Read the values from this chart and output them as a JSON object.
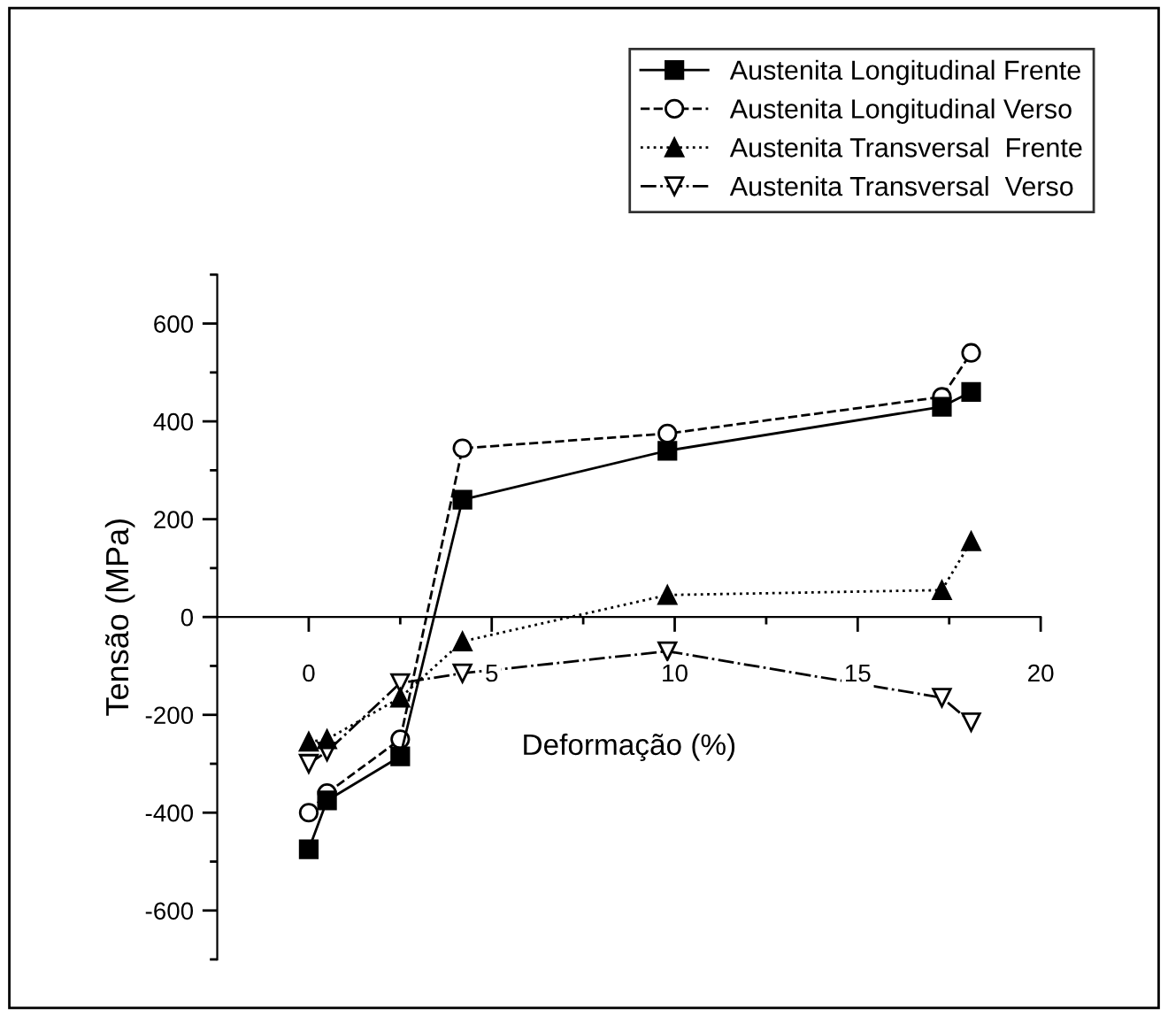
{
  "chart_data": {
    "type": "line",
    "xlabel": "Deformação (%)",
    "ylabel": "Tensão (MPa)",
    "xlim": [
      -2.5,
      20
    ],
    "xticks": [
      0,
      5,
      10,
      15,
      20
    ],
    "ylim": [
      -700,
      700
    ],
    "yticks": [
      -600,
      -400,
      -200,
      0,
      200,
      400,
      600
    ],
    "grid": false,
    "legend": "top right",
    "series": [
      {
        "name": "Austenita Longitudinal Frente",
        "color": "#000000",
        "marker": "square",
        "line_style": "solid",
        "x": [
          0,
          0.5,
          2.5,
          4.2,
          9.8,
          17.3,
          18.1
        ],
        "values": [
          -475,
          -375,
          -285,
          240,
          340,
          430,
          460
        ]
      },
      {
        "name": "Austenita Longitudinal Verso",
        "color": "#000000",
        "marker": "circle",
        "line_style": "dashed",
        "x": [
          0,
          0.5,
          2.5,
          4.2,
          9.8,
          17.3,
          18.1
        ],
        "values": [
          -400,
          -360,
          -250,
          345,
          375,
          450,
          540
        ]
      },
      {
        "name": "Austenita Transversal  Frente",
        "color": "#000000",
        "marker": "triangle",
        "line_style": "dotted",
        "x": [
          0,
          0.5,
          2.5,
          4.2,
          9.8,
          17.3,
          18.1
        ],
        "values": [
          -255,
          -250,
          -165,
          -50,
          45,
          55,
          155
        ]
      },
      {
        "name": "Austenita Transversal  Verso",
        "color": "#000000",
        "marker": "triangle_down",
        "line_style": "dashdot",
        "x": [
          0,
          0.5,
          2.5,
          4.2,
          9.8,
          17.3,
          18.1
        ],
        "values": [
          -300,
          -275,
          -135,
          -115,
          -70,
          -165,
          -215
        ]
      }
    ]
  }
}
